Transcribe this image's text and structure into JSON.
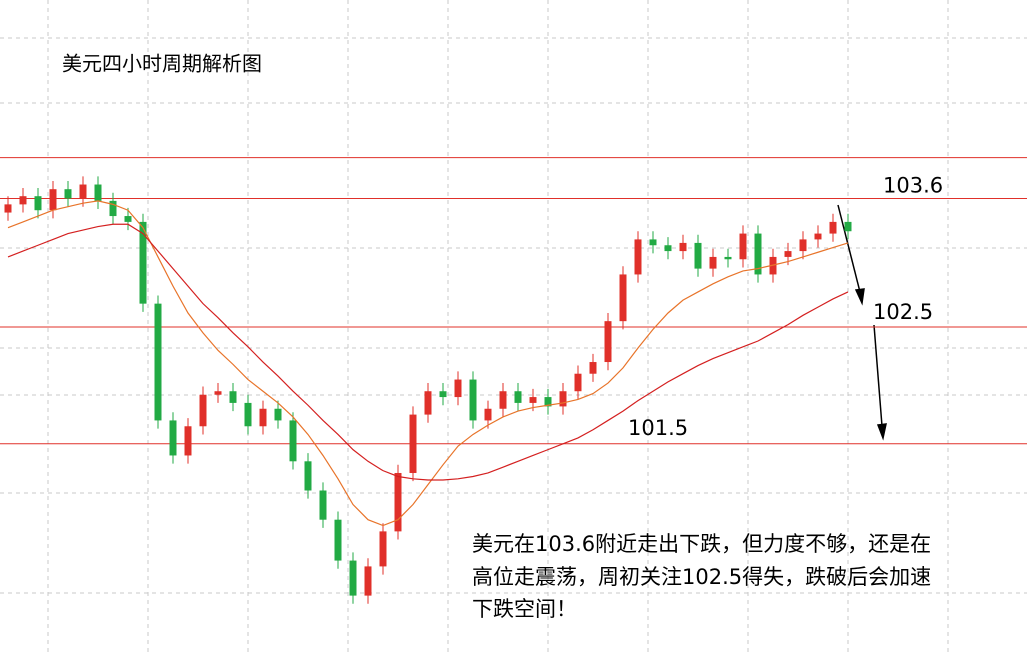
{
  "chart_data": {
    "type": "candlestick",
    "title": "美元四小时周期解析图",
    "note": [
      "美元在103.6附近走出下跌，但力度不够，还是在",
      "高位走震荡，周初关注102.5得失，跌破后会加速",
      "下跌空间！"
    ],
    "ylim": [
      99.7,
      105.3
    ],
    "level_top": 103.95,
    "levels": [
      103.6,
      102.5,
      101.5
    ],
    "level_color": "#e0302a",
    "up_color": "#e0302a",
    "down_color": "#22aa44",
    "open": [
      103.48,
      103.55,
      103.62,
      103.5,
      103.68,
      103.6,
      103.72,
      103.58,
      103.45,
      103.4,
      102.7,
      101.7,
      101.4,
      101.65,
      101.92,
      101.95,
      101.85,
      101.65,
      101.8,
      101.7,
      101.35,
      101.1,
      100.85,
      100.5,
      100.2,
      100.45,
      100.75,
      101.25,
      101.75,
      101.95,
      101.9,
      102.05,
      101.7,
      101.8,
      101.95,
      101.85,
      101.9,
      101.82,
      101.95,
      102.1,
      102.2,
      102.55,
      102.95,
      103.25,
      103.2,
      103.15,
      103.22,
      103.0,
      103.1,
      103.08,
      103.3,
      102.95,
      103.1,
      103.15,
      103.25,
      103.3,
      103.4
    ],
    "high": [
      103.62,
      103.69,
      103.69,
      103.75,
      103.75,
      103.79,
      103.79,
      103.65,
      103.52,
      103.47,
      102.77,
      101.77,
      101.72,
      101.99,
      102.02,
      102.02,
      101.92,
      101.87,
      101.87,
      101.77,
      101.42,
      101.17,
      100.92,
      100.57,
      100.52,
      100.82,
      101.32,
      101.82,
      102.02,
      102.02,
      102.12,
      102.12,
      101.87,
      102.02,
      102.02,
      101.97,
      101.97,
      102.02,
      102.17,
      102.27,
      102.62,
      103.02,
      103.32,
      103.32,
      103.27,
      103.29,
      103.29,
      103.17,
      103.17,
      103.37,
      103.37,
      103.17,
      103.22,
      103.32,
      103.37,
      103.47,
      103.47
    ],
    "low": [
      103.41,
      103.48,
      103.43,
      103.43,
      103.53,
      103.53,
      103.51,
      103.38,
      103.33,
      102.63,
      101.63,
      101.33,
      101.33,
      101.58,
      101.85,
      101.78,
      101.58,
      101.58,
      101.63,
      101.28,
      101.03,
      100.78,
      100.43,
      100.13,
      100.13,
      100.38,
      100.68,
      101.18,
      101.68,
      101.83,
      101.83,
      101.63,
      101.63,
      101.73,
      101.78,
      101.78,
      101.75,
      101.75,
      101.88,
      102.03,
      102.13,
      102.48,
      102.88,
      103.13,
      103.08,
      103.08,
      102.93,
      102.93,
      103.01,
      103.01,
      102.88,
      102.88,
      103.03,
      103.08,
      103.18,
      103.23,
      103.25
    ],
    "close": [
      103.55,
      103.62,
      103.5,
      103.68,
      103.6,
      103.72,
      103.58,
      103.45,
      103.4,
      102.7,
      101.7,
      101.4,
      101.65,
      101.92,
      101.95,
      101.85,
      101.65,
      101.8,
      101.7,
      101.35,
      101.1,
      100.85,
      100.5,
      100.2,
      100.45,
      100.75,
      101.25,
      101.75,
      101.95,
      101.9,
      102.05,
      101.7,
      101.8,
      101.95,
      101.85,
      101.9,
      101.82,
      101.95,
      102.1,
      102.2,
      102.55,
      102.95,
      103.25,
      103.2,
      103.15,
      103.22,
      103.0,
      103.1,
      103.08,
      103.3,
      102.95,
      103.1,
      103.15,
      103.25,
      103.3,
      103.4,
      103.32
    ],
    "series": [
      {
        "color": "#e8742a",
        "values": [
          103.35,
          103.4,
          103.45,
          103.5,
          103.53,
          103.56,
          103.58,
          103.55,
          103.5,
          103.35,
          103.1,
          102.85,
          102.62,
          102.45,
          102.3,
          102.18,
          102.05,
          101.95,
          101.85,
          101.73,
          101.58,
          101.4,
          101.2,
          100.98,
          100.85,
          100.8,
          100.85,
          100.98,
          101.15,
          101.32,
          101.48,
          101.58,
          101.66,
          101.73,
          101.78,
          101.81,
          101.83,
          101.85,
          101.88,
          101.93,
          102.02,
          102.15,
          102.32,
          102.48,
          102.62,
          102.73,
          102.8,
          102.87,
          102.93,
          102.98,
          103.0,
          103.03,
          103.06,
          103.1,
          103.14,
          103.18,
          103.22
        ]
      },
      {
        "color": "#d42020",
        "values": [
          103.1,
          103.15,
          103.2,
          103.25,
          103.3,
          103.33,
          103.36,
          103.38,
          103.38,
          103.3,
          103.15,
          103.0,
          102.85,
          102.7,
          102.58,
          102.45,
          102.33,
          102.2,
          102.08,
          101.95,
          101.83,
          101.7,
          101.58,
          101.45,
          101.35,
          101.27,
          101.22,
          101.2,
          101.19,
          101.19,
          101.2,
          101.22,
          101.25,
          101.3,
          101.35,
          101.4,
          101.45,
          101.5,
          101.55,
          101.62,
          101.7,
          101.78,
          101.87,
          101.95,
          102.03,
          102.1,
          102.17,
          102.23,
          102.28,
          102.33,
          102.38,
          102.45,
          102.52,
          102.6,
          102.67,
          102.74,
          102.8
        ]
      }
    ]
  }
}
